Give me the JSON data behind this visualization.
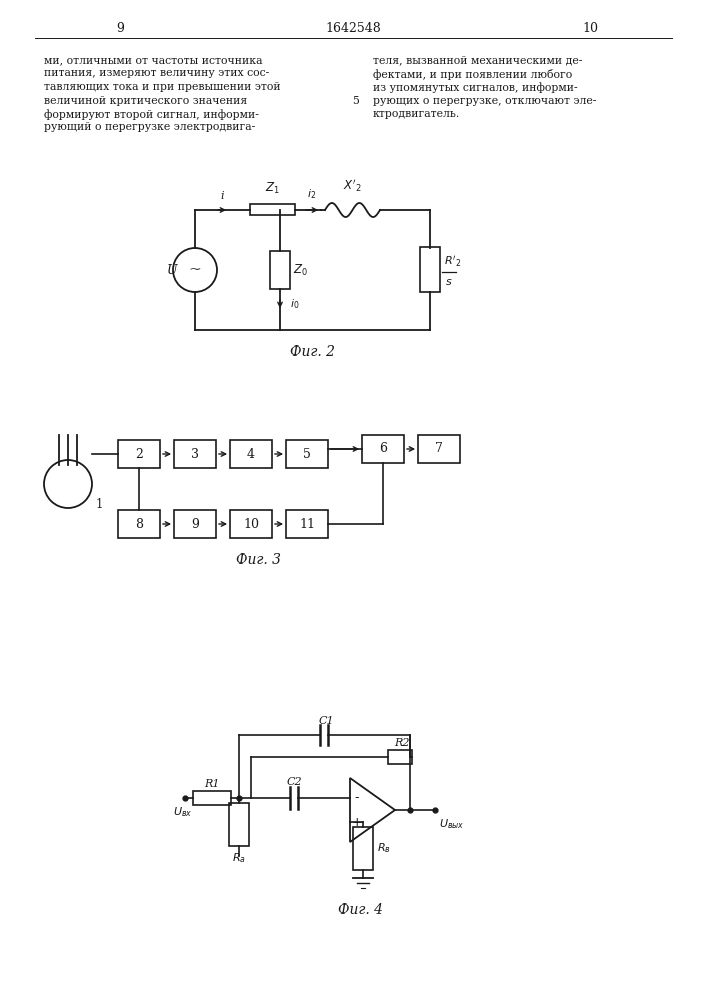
{
  "page_number_left": "9",
  "page_number_center": "1642548",
  "page_number_right": "10",
  "text_left": [
    "ми, отличными от частоты источника",
    "питания, измеряют величину этих сос-",
    "тавляющих тока и при превышении этой",
    "величиной критического значения",
    "формируют второй сигнал, информи-",
    "рующий о перегрузке электродвига-"
  ],
  "text_right": [
    "теля, вызванной механическими де-",
    "фектами, и при появлении любого",
    "из упомянутых сигналов, информи-",
    "рующих о перегрузке, отключают эле-",
    "ктродвигатель."
  ],
  "line_number": "5",
  "fig2_label": "Фиг. 2",
  "fig3_label": "Фиг. 3",
  "fig4_label": "Фиг. 4",
  "background_color": "#ffffff",
  "line_color": "#1a1a1a",
  "text_color": "#1a1a1a"
}
